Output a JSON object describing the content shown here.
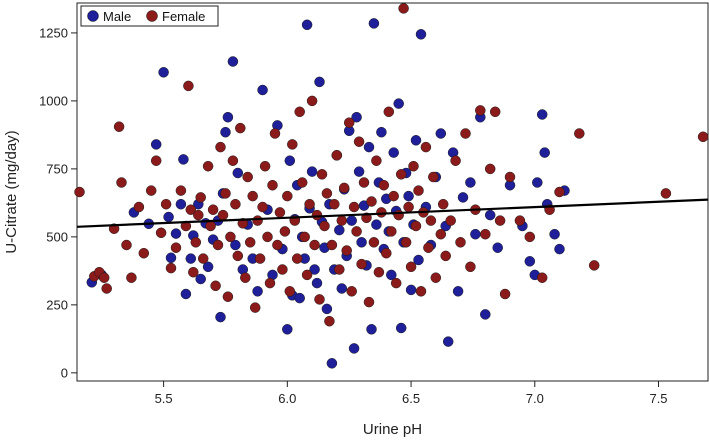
{
  "chart_data": {
    "type": "scatter",
    "xlabel": "Urine pH",
    "ylabel": "U-Citrate (mg/day)",
    "xlim": [
      5.15,
      7.7
    ],
    "ylim": [
      -30,
      1360
    ],
    "xticks": [
      5.5,
      6.0,
      6.5,
      7.0,
      7.5
    ],
    "yticks": [
      0,
      250,
      500,
      750,
      1000,
      1250
    ],
    "grid": false,
    "legend_position": "top-left",
    "trend_line": {
      "x": [
        5.15,
        7.7
      ],
      "y": [
        537,
        637
      ],
      "color": "#000000"
    },
    "series": [
      {
        "name": "Male",
        "color": "#1f1f99",
        "points": [
          [
            5.21,
            333
          ],
          [
            5.25,
            360
          ],
          [
            5.38,
            590
          ],
          [
            5.44,
            548
          ],
          [
            5.47,
            840
          ],
          [
            5.5,
            1105
          ],
          [
            5.52,
            573
          ],
          [
            5.53,
            423
          ],
          [
            5.55,
            512
          ],
          [
            5.57,
            620
          ],
          [
            5.58,
            785
          ],
          [
            5.59,
            290
          ],
          [
            5.61,
            420
          ],
          [
            5.62,
            505
          ],
          [
            5.64,
            620
          ],
          [
            5.65,
            345
          ],
          [
            5.67,
            550
          ],
          [
            5.68,
            390
          ],
          [
            5.7,
            490
          ],
          [
            5.72,
            560
          ],
          [
            5.73,
            205
          ],
          [
            5.74,
            660
          ],
          [
            5.75,
            885
          ],
          [
            5.76,
            940
          ],
          [
            5.78,
            1145
          ],
          [
            5.79,
            470
          ],
          [
            5.8,
            735
          ],
          [
            5.82,
            380
          ],
          [
            5.84,
            545
          ],
          [
            5.86,
            420
          ],
          [
            5.88,
            300
          ],
          [
            5.9,
            1040
          ],
          [
            5.92,
            600
          ],
          [
            5.94,
            360
          ],
          [
            5.96,
            910
          ],
          [
            5.98,
            455
          ],
          [
            6.0,
            160
          ],
          [
            6.01,
            780
          ],
          [
            6.02,
            285
          ],
          [
            6.03,
            565
          ],
          [
            6.04,
            690
          ],
          [
            6.05,
            275
          ],
          [
            6.06,
            500
          ],
          [
            6.07,
            420
          ],
          [
            6.08,
            1280
          ],
          [
            6.09,
            605
          ],
          [
            6.1,
            740
          ],
          [
            6.11,
            380
          ],
          [
            6.12,
            330
          ],
          [
            6.13,
            1070
          ],
          [
            6.14,
            555
          ],
          [
            6.15,
            460
          ],
          [
            6.16,
            235
          ],
          [
            6.17,
            620
          ],
          [
            6.18,
            35
          ],
          [
            6.19,
            380
          ],
          [
            6.2,
            800
          ],
          [
            6.21,
            525
          ],
          [
            6.22,
            310
          ],
          [
            6.23,
            675
          ],
          [
            6.24,
            430
          ],
          [
            6.25,
            890
          ],
          [
            6.26,
            560
          ],
          [
            6.27,
            90
          ],
          [
            6.28,
            940
          ],
          [
            6.29,
            740
          ],
          [
            6.3,
            480
          ],
          [
            6.31,
            615
          ],
          [
            6.32,
            395
          ],
          [
            6.33,
            830
          ],
          [
            6.34,
            160
          ],
          [
            6.35,
            1285
          ],
          [
            6.36,
            545
          ],
          [
            6.37,
            700
          ],
          [
            6.38,
            885
          ],
          [
            6.39,
            455
          ],
          [
            6.4,
            640
          ],
          [
            6.41,
            520
          ],
          [
            6.42,
            360
          ],
          [
            6.43,
            810
          ],
          [
            6.44,
            595
          ],
          [
            6.45,
            990
          ],
          [
            6.46,
            165
          ],
          [
            6.47,
            480
          ],
          [
            6.48,
            735
          ],
          [
            6.49,
            650
          ],
          [
            6.5,
            305
          ],
          [
            6.51,
            545
          ],
          [
            6.52,
            855
          ],
          [
            6.53,
            415
          ],
          [
            6.54,
            1245
          ],
          [
            6.56,
            610
          ],
          [
            6.58,
            470
          ],
          [
            6.6,
            720
          ],
          [
            6.62,
            880
          ],
          [
            6.64,
            540
          ],
          [
            6.65,
            115
          ],
          [
            6.67,
            810
          ],
          [
            6.69,
            300
          ],
          [
            6.71,
            645
          ],
          [
            6.74,
            700
          ],
          [
            6.76,
            510
          ],
          [
            6.78,
            940
          ],
          [
            6.8,
            215
          ],
          [
            6.82,
            580
          ],
          [
            6.85,
            460
          ],
          [
            6.9,
            690
          ],
          [
            6.95,
            540
          ],
          [
            6.98,
            410
          ],
          [
            7.0,
            360
          ],
          [
            7.01,
            700
          ],
          [
            7.03,
            950
          ],
          [
            7.05,
            620
          ],
          [
            7.08,
            510
          ],
          [
            7.1,
            455
          ],
          [
            7.12,
            670
          ],
          [
            7.04,
            810
          ]
        ]
      },
      {
        "name": "Female",
        "color": "#8b1a1a",
        "points": [
          [
            5.16,
            665
          ],
          [
            5.22,
            355
          ],
          [
            5.24,
            370
          ],
          [
            5.27,
            310
          ],
          [
            5.3,
            530
          ],
          [
            5.32,
            905
          ],
          [
            5.33,
            700
          ],
          [
            5.35,
            470
          ],
          [
            5.4,
            610
          ],
          [
            5.42,
            440
          ],
          [
            5.45,
            670
          ],
          [
            5.47,
            780
          ],
          [
            5.49,
            515
          ],
          [
            5.51,
            620
          ],
          [
            5.53,
            385
          ],
          [
            5.55,
            460
          ],
          [
            5.57,
            670
          ],
          [
            5.59,
            540
          ],
          [
            5.6,
            1055
          ],
          [
            5.61,
            600
          ],
          [
            5.62,
            370
          ],
          [
            5.63,
            480
          ],
          [
            5.64,
            580
          ],
          [
            5.65,
            645
          ],
          [
            5.66,
            420
          ],
          [
            5.68,
            760
          ],
          [
            5.69,
            540
          ],
          [
            5.7,
            600
          ],
          [
            5.71,
            320
          ],
          [
            5.72,
            470
          ],
          [
            5.73,
            830
          ],
          [
            5.74,
            580
          ],
          [
            5.75,
            660
          ],
          [
            5.76,
            280
          ],
          [
            5.77,
            500
          ],
          [
            5.78,
            780
          ],
          [
            5.79,
            620
          ],
          [
            5.8,
            430
          ],
          [
            5.81,
            900
          ],
          [
            5.82,
            550
          ],
          [
            5.83,
            350
          ],
          [
            5.84,
            720
          ],
          [
            5.85,
            480
          ],
          [
            5.86,
            650
          ],
          [
            5.87,
            240
          ],
          [
            5.88,
            560
          ],
          [
            5.89,
            420
          ],
          [
            5.9,
            610
          ],
          [
            5.91,
            760
          ],
          [
            5.92,
            500
          ],
          [
            5.93,
            330
          ],
          [
            5.94,
            690
          ],
          [
            5.95,
            880
          ],
          [
            5.96,
            470
          ],
          [
            5.97,
            590
          ],
          [
            5.98,
            380
          ],
          [
            5.99,
            520
          ],
          [
            6.0,
            650
          ],
          [
            6.01,
            300
          ],
          [
            6.02,
            840
          ],
          [
            6.03,
            560
          ],
          [
            6.04,
            420
          ],
          [
            6.05,
            960
          ],
          [
            6.06,
            700
          ],
          [
            6.07,
            500
          ],
          [
            6.08,
            360
          ],
          [
            6.09,
            620
          ],
          [
            6.1,
            1000
          ],
          [
            6.11,
            470
          ],
          [
            6.12,
            580
          ],
          [
            6.13,
            270
          ],
          [
            6.14,
            730
          ],
          [
            6.15,
            540
          ],
          [
            6.16,
            660
          ],
          [
            6.17,
            190
          ],
          [
            6.18,
            470
          ],
          [
            6.19,
            620
          ],
          [
            6.2,
            800
          ],
          [
            6.21,
            380
          ],
          [
            6.22,
            560
          ],
          [
            6.23,
            680
          ],
          [
            6.24,
            450
          ],
          [
            6.25,
            920
          ],
          [
            6.26,
            300
          ],
          [
            6.27,
            610
          ],
          [
            6.28,
            520
          ],
          [
            6.29,
            850
          ],
          [
            6.3,
            400
          ],
          [
            6.31,
            700
          ],
          [
            6.32,
            570
          ],
          [
            6.33,
            260
          ],
          [
            6.34,
            630
          ],
          [
            6.35,
            480
          ],
          [
            6.36,
            780
          ],
          [
            6.37,
            370
          ],
          [
            6.38,
            590
          ],
          [
            6.39,
            690
          ],
          [
            6.4,
            440
          ],
          [
            6.41,
            960
          ],
          [
            6.42,
            520
          ],
          [
            6.43,
            650
          ],
          [
            6.44,
            330
          ],
          [
            6.45,
            580
          ],
          [
            6.46,
            730
          ],
          [
            6.47,
            1340
          ],
          [
            6.48,
            480
          ],
          [
            6.49,
            610
          ],
          [
            6.5,
            390
          ],
          [
            6.51,
            760
          ],
          [
            6.52,
            540
          ],
          [
            6.53,
            670
          ],
          [
            6.54,
            300
          ],
          [
            6.55,
            590
          ],
          [
            6.56,
            830
          ],
          [
            6.57,
            460
          ],
          [
            6.58,
            560
          ],
          [
            6.59,
            720
          ],
          [
            6.6,
            350
          ],
          [
            6.62,
            510
          ],
          [
            6.63,
            620
          ],
          [
            6.64,
            430
          ],
          [
            6.66,
            560
          ],
          [
            6.68,
            780
          ],
          [
            6.7,
            480
          ],
          [
            6.72,
            880
          ],
          [
            6.74,
            390
          ],
          [
            6.76,
            600
          ],
          [
            6.78,
            965
          ],
          [
            6.8,
            510
          ],
          [
            6.82,
            750
          ],
          [
            6.84,
            960
          ],
          [
            6.86,
            560
          ],
          [
            6.88,
            290
          ],
          [
            6.9,
            720
          ],
          [
            6.94,
            560
          ],
          [
            6.98,
            500
          ],
          [
            7.03,
            350
          ],
          [
            7.06,
            600
          ],
          [
            7.1,
            665
          ],
          [
            7.18,
            880
          ],
          [
            7.24,
            395
          ],
          [
            7.53,
            660
          ],
          [
            7.68,
            868
          ],
          [
            5.37,
            350
          ],
          [
            5.26,
            350
          ]
        ]
      }
    ]
  }
}
